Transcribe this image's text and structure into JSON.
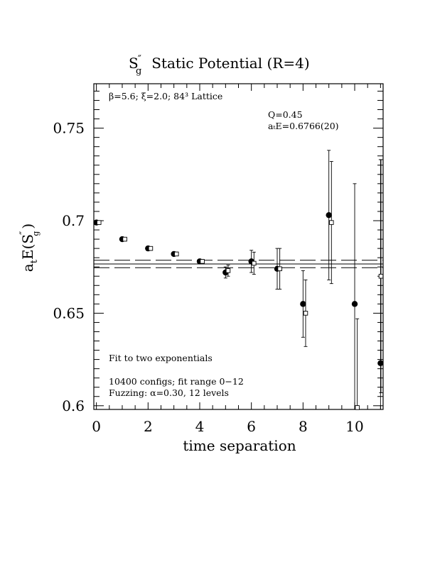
{
  "chart_data": {
    "type": "scatter",
    "title_main": "S",
    "title_prime": "″",
    "title_sub": "g",
    "title_rest": "Static Potential (R=4)",
    "xlabel": "time separation",
    "ylabel_main": "a",
    "ylabel_sub": "t",
    "ylabel_E": "E(S",
    "ylabel_prime": "″",
    "ylabel_subsub": "g",
    "ylabel_close": ")",
    "xlim": [
      -0.1,
      11.1
    ],
    "ylim": [
      0.598,
      0.774
    ],
    "x_ticks": [
      0,
      2,
      4,
      6,
      8,
      10
    ],
    "y_ticks": [
      0.6,
      0.65,
      0.7,
      0.75
    ],
    "y_tick_labels": [
      "0.6",
      "0.65",
      "0.7",
      "0.75"
    ],
    "x_tick_labels": [
      "0",
      "2",
      "4",
      "6",
      "8",
      "10"
    ],
    "lattice_label": "β=5.6; ξ=2.0; 84³ Lattice",
    "q_label": "Q=0.45",
    "fit_value_label": "aₜE=0.6766(20)",
    "fit_desc": "Fit to two exponentials",
    "configs_label": "10400 configs; fit range 0−12",
    "fuzz_label": "Fuzzing: α=0.30, 12 levels",
    "fit": {
      "value": 0.6766,
      "error": 0.002,
      "x_range": [
        -0.1,
        11.1
      ]
    },
    "series": [
      {
        "marker": "filled-circle",
        "points": [
          {
            "x": 0,
            "y": 0.699,
            "err": 0.001
          },
          {
            "x": 1,
            "y": 0.69,
            "err": 0.001
          },
          {
            "x": 2,
            "y": 0.685,
            "err": 0.001
          },
          {
            "x": 3,
            "y": 0.682,
            "err": 0.001
          },
          {
            "x": 4,
            "y": 0.678,
            "err": 0.001
          },
          {
            "x": 5,
            "y": 0.672,
            "err": 0.003
          },
          {
            "x": 6,
            "y": 0.678,
            "err": 0.006
          },
          {
            "x": 7,
            "y": 0.674,
            "err": 0.011
          },
          {
            "x": 8,
            "y": 0.655,
            "err": 0.018
          },
          {
            "x": 9,
            "y": 0.703,
            "err": 0.035
          },
          {
            "x": 10,
            "y": 0.655,
            "err": 0.065
          },
          {
            "x": 11,
            "y": 0.623,
            "err": 0.11
          }
        ]
      },
      {
        "marker": "open-square",
        "points": [
          {
            "x": 0.1,
            "y": 0.699,
            "err": 0.001
          },
          {
            "x": 1.1,
            "y": 0.69,
            "err": 0.001
          },
          {
            "x": 2.1,
            "y": 0.685,
            "err": 0.001
          },
          {
            "x": 3.1,
            "y": 0.682,
            "err": 0.001
          },
          {
            "x": 4.1,
            "y": 0.678,
            "err": 0.001
          },
          {
            "x": 5.1,
            "y": 0.673,
            "err": 0.003
          },
          {
            "x": 6.1,
            "y": 0.677,
            "err": 0.006
          },
          {
            "x": 7.1,
            "y": 0.674,
            "err": 0.011
          },
          {
            "x": 8.1,
            "y": 0.65,
            "err": 0.018
          },
          {
            "x": 9.1,
            "y": 0.699,
            "err": 0.033
          },
          {
            "x": 10.1,
            "y": 0.599,
            "err": 0.048
          },
          {
            "x": 11.1,
            "y": 0.67,
            "err": 0.063
          }
        ]
      }
    ]
  }
}
